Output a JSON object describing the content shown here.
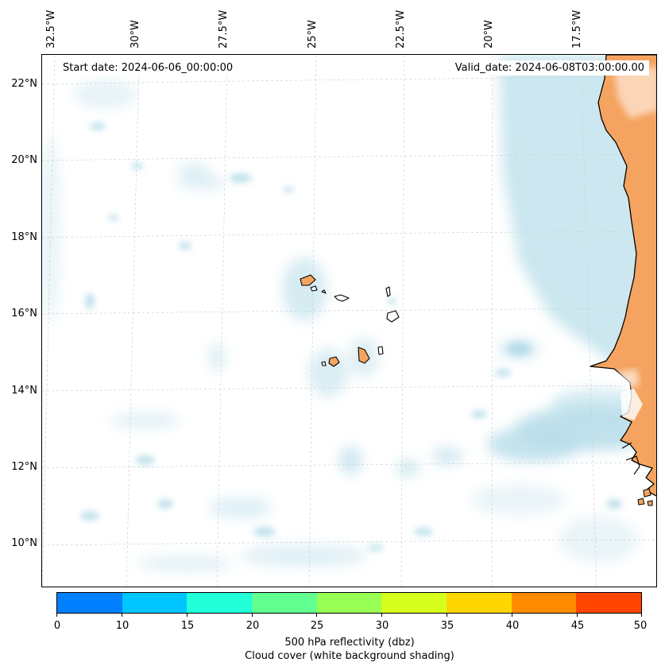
{
  "header": {
    "start_date": "Start date: 2024-06-06_00:00:00",
    "valid_date": "Valid_date: 2024-06-08T03:00:00.00"
  },
  "axes": {
    "lat_labels": [
      "22°N",
      "20°N",
      "18°N",
      "16°N",
      "14°N",
      "12°N",
      "10°N"
    ],
    "lon_labels": [
      "32.5°W",
      "30°W",
      "27.5°W",
      "25°W",
      "22.5°W",
      "20°W",
      "17.5°W"
    ]
  },
  "map": {
    "region": "Cabo Verde Islands and West African coast",
    "land_color": "#f4a460",
    "cloud_color": "#add8e6",
    "coastline_color": "#000000"
  },
  "colorbar": {
    "ticks": [
      "0",
      "10",
      "15",
      "20",
      "25",
      "30",
      "35",
      "40",
      "45",
      "50"
    ],
    "colors": [
      "#0080ff",
      "#00c5ff",
      "#22ffd9",
      "#62ff91",
      "#99ff55",
      "#d6ff1e",
      "#ffd700",
      "#ff8c00",
      "#ff4500"
    ],
    "label": "500 hPa reflectivity (dbz)",
    "sublabel": "Cloud cover (white background shading)"
  }
}
